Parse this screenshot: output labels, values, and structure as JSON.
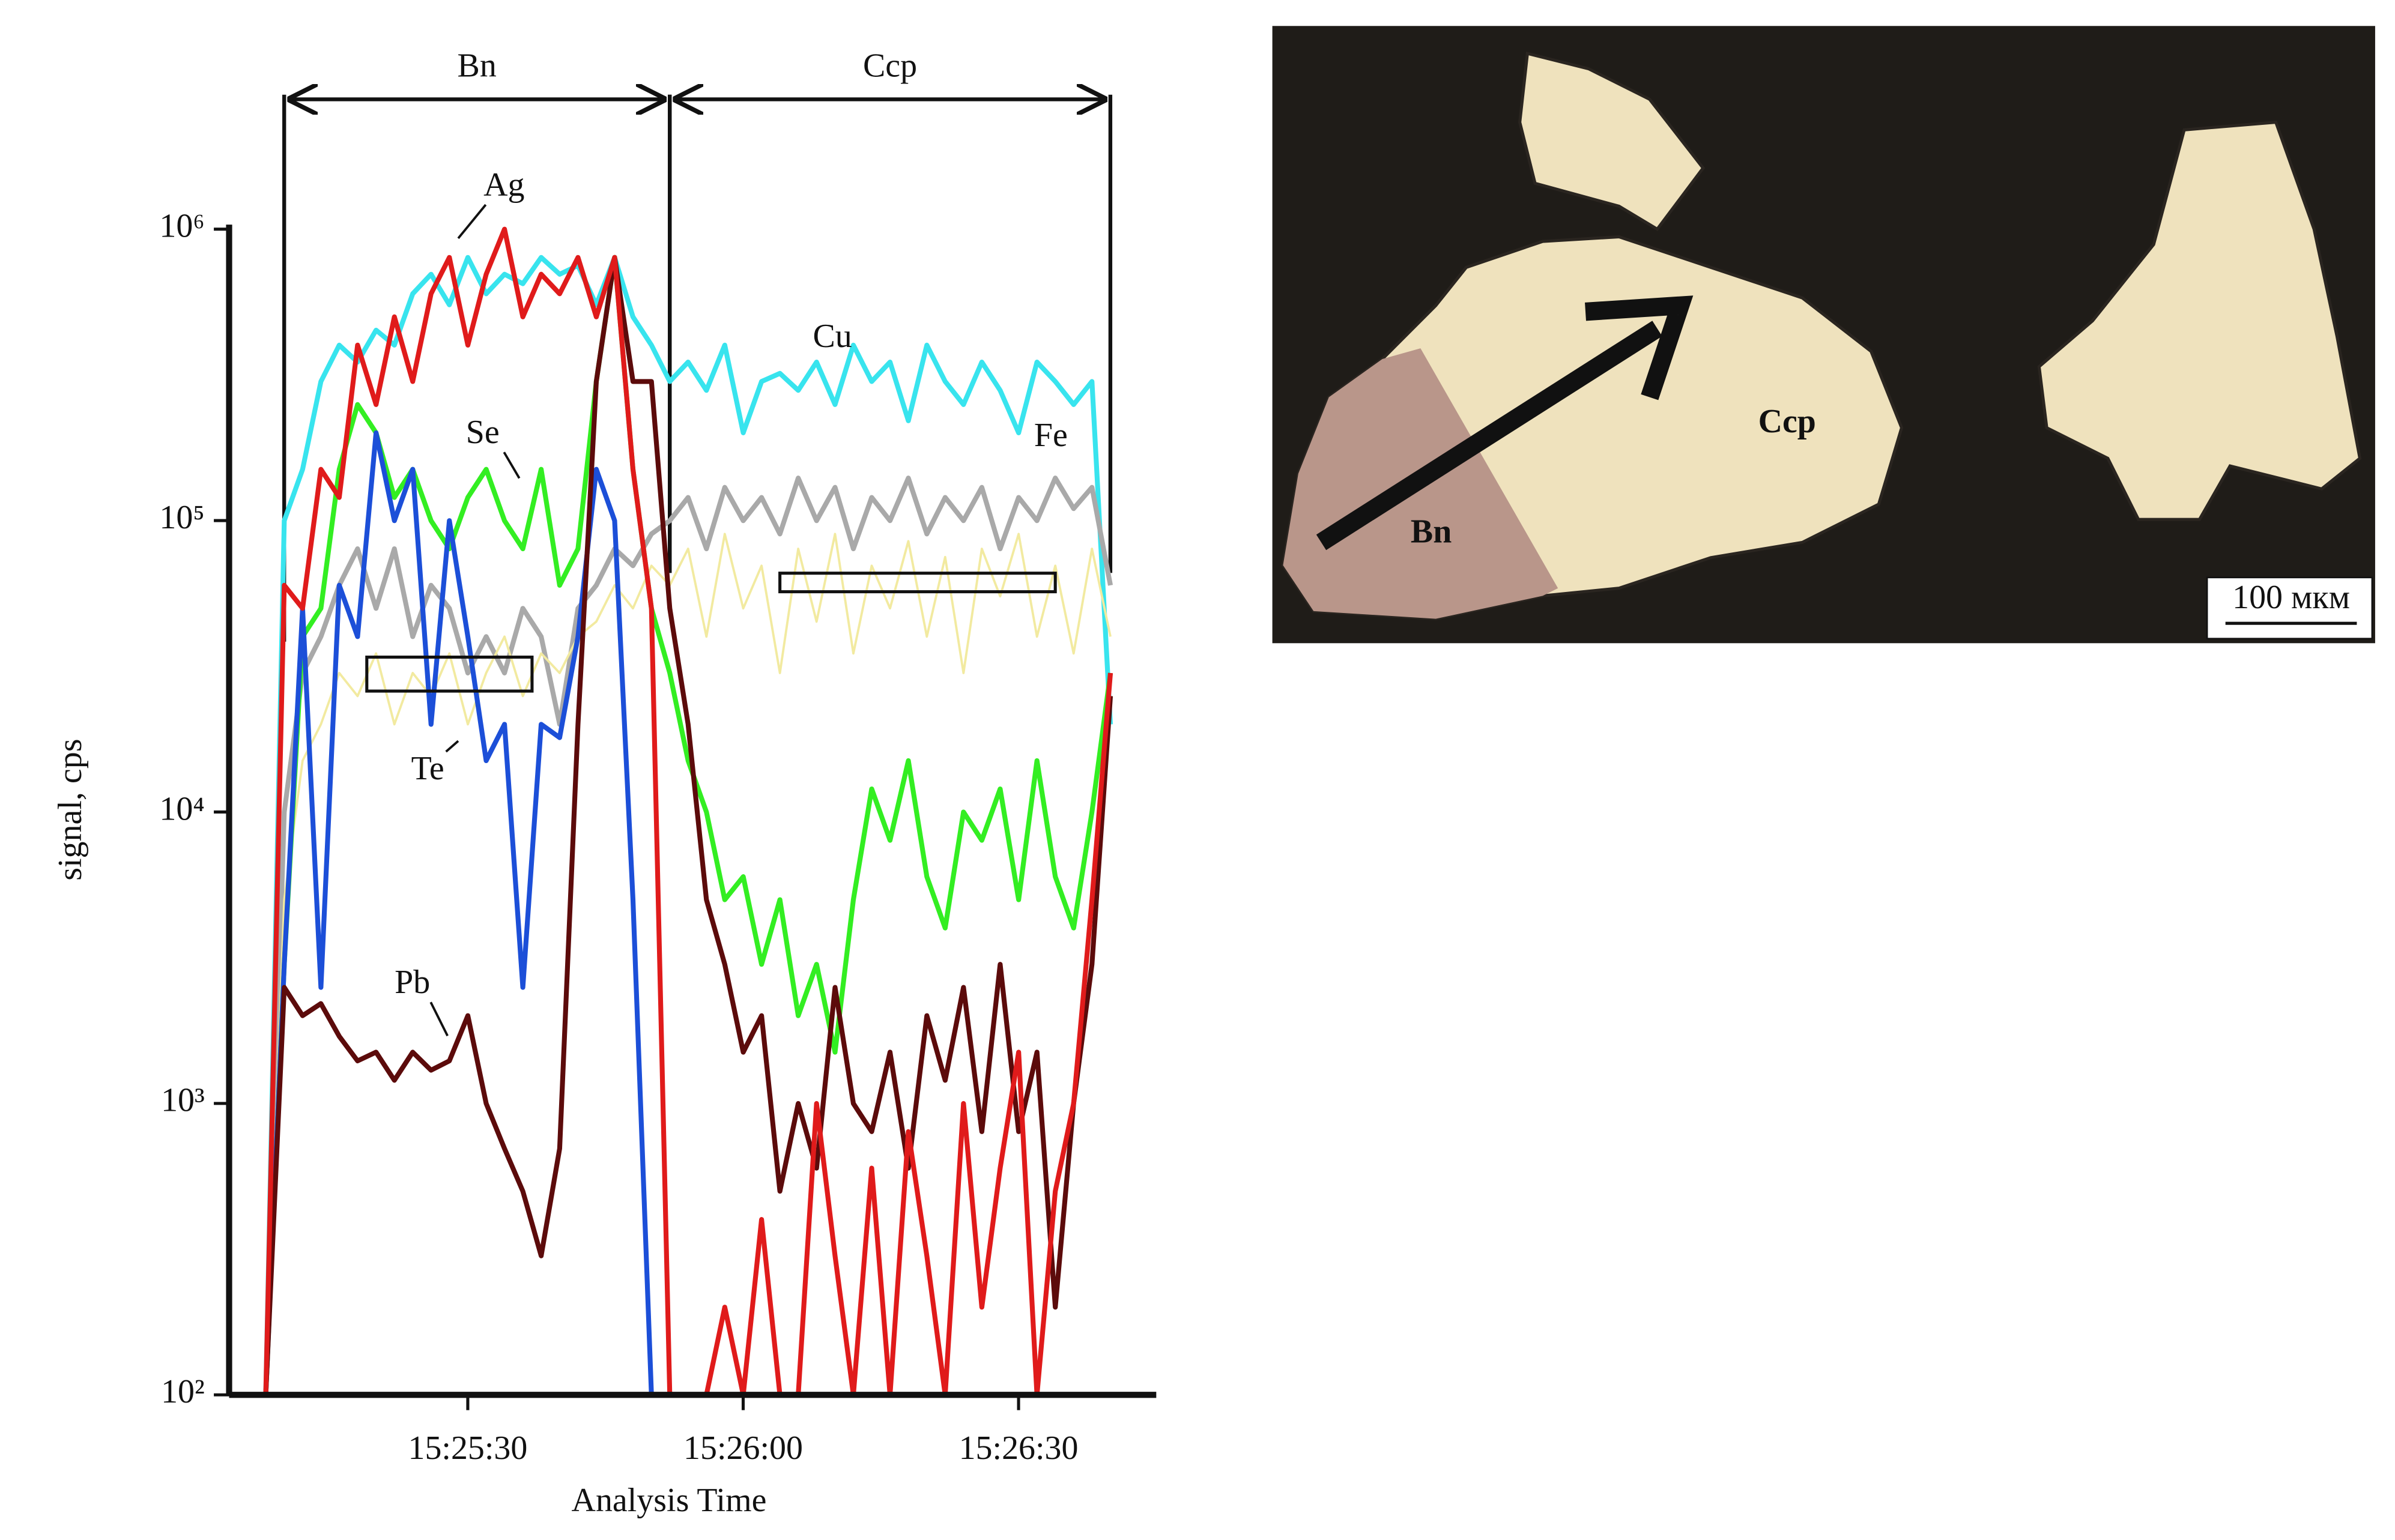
{
  "chart_data": {
    "type": "line",
    "x_label": "Analysis Time",
    "y_label": "signal, cps",
    "log_scale": true,
    "xlim": [
      "15:25:04",
      "15:26:45"
    ],
    "xticks": [
      "15:25:30",
      "15:26:00",
      "15:26:30"
    ],
    "ylim": [
      100,
      1000000
    ],
    "yticks": [
      {
        "value": 100,
        "label": "10²"
      },
      {
        "value": 1000,
        "label": "10³"
      },
      {
        "value": 10000,
        "label": "10⁴"
      },
      {
        "value": 100000,
        "label": "10⁵"
      },
      {
        "value": 1000000,
        "label": "10⁶"
      }
    ],
    "x": [
      "15:25:08",
      "15:25:10",
      "15:25:12",
      "15:25:14",
      "15:25:16",
      "15:25:18",
      "15:25:20",
      "15:25:22",
      "15:25:24",
      "15:25:26",
      "15:25:28",
      "15:25:30",
      "15:25:32",
      "15:25:34",
      "15:25:36",
      "15:25:38",
      "15:25:40",
      "15:25:42",
      "15:25:44",
      "15:25:46",
      "15:25:48",
      "15:25:50",
      "15:25:52",
      "15:25:54",
      "15:25:56",
      "15:25:58",
      "15:26:00",
      "15:26:02",
      "15:26:04",
      "15:26:06",
      "15:26:08",
      "15:26:10",
      "15:26:12",
      "15:26:14",
      "15:26:16",
      "15:26:18",
      "15:26:20",
      "15:26:22",
      "15:26:24",
      "15:26:26",
      "15:26:28",
      "15:26:30",
      "15:26:32",
      "15:26:34",
      "15:26:36",
      "15:26:38",
      "15:26:40"
    ],
    "series": [
      {
        "name": "Cu",
        "color": "#38e4ee",
        "values": [
          100,
          100000,
          150000,
          300000,
          400000,
          350000,
          450000,
          400000,
          600000,
          700000,
          550000,
          800000,
          600000,
          700000,
          650000,
          800000,
          700000,
          750000,
          550000,
          800000,
          500000,
          400000,
          300000,
          350000,
          280000,
          400000,
          200000,
          300000,
          320000,
          280000,
          350000,
          250000,
          400000,
          300000,
          350000,
          220000,
          400000,
          300000,
          250000,
          350000,
          280000,
          200000,
          350000,
          300000,
          250000,
          300000,
          20000
        ]
      },
      {
        "name": "Fe",
        "color": "#a9a9a9",
        "values": [
          100,
          10000,
          30000,
          40000,
          60000,
          80000,
          50000,
          80000,
          40000,
          60000,
          50000,
          30000,
          40000,
          30000,
          50000,
          40000,
          20000,
          50000,
          60000,
          80000,
          70000,
          90000,
          100000,
          120000,
          80000,
          130000,
          100000,
          120000,
          90000,
          140000,
          100000,
          130000,
          80000,
          120000,
          100000,
          140000,
          90000,
          120000,
          100000,
          130000,
          80000,
          120000,
          100000,
          140000,
          110000,
          130000,
          60000
        ]
      },
      {
        "color": "#f2eaa0",
        "values": [
          100,
          5000,
          15000,
          20000,
          30000,
          25000,
          35000,
          20000,
          30000,
          25000,
          35000,
          20000,
          30000,
          40000,
          25000,
          35000,
          30000,
          40000,
          45000,
          60000,
          50000,
          70000,
          60000,
          80000,
          40000,
          90000,
          50000,
          70000,
          30000,
          80000,
          45000,
          90000,
          35000,
          70000,
          50000,
          85000,
          40000,
          75000,
          30000,
          80000,
          55000,
          90000,
          40000,
          70000,
          35000,
          80000,
          40000
        ]
      },
      {
        "name": "Se",
        "color": "#33ee22",
        "values": [
          100,
          3000,
          40000,
          50000,
          150000,
          250000,
          200000,
          120000,
          150000,
          100000,
          80000,
          120000,
          150000,
          100000,
          80000,
          150000,
          60000,
          80000,
          300000,
          800000,
          150000,
          50000,
          30000,
          15000,
          10000,
          5000,
          6000,
          3000,
          5000,
          2000,
          3000,
          1500,
          5000,
          12000,
          8000,
          15000,
          6000,
          4000,
          10000,
          8000,
          12000,
          5000,
          15000,
          6000,
          4000,
          10000,
          30000
        ]
      },
      {
        "name": "Te",
        "color": "#1c4fd8",
        "values": [
          100,
          3000,
          50000,
          2500,
          60000,
          40000,
          200000,
          100000,
          150000,
          20000,
          100000,
          40000,
          15000,
          20000,
          2500,
          20000,
          18000,
          40000,
          150000,
          100000,
          5000,
          100,
          null,
          null,
          null,
          null,
          null,
          null,
          null,
          null,
          null,
          null,
          null,
          null,
          null,
          null,
          null,
          null,
          null,
          null,
          null,
          null,
          null,
          null,
          null,
          null,
          null
        ]
      },
      {
        "name": "Pb",
        "color": "#5c0b0b",
        "values": [
          100,
          2500,
          2000,
          2200,
          1700,
          1400,
          1500,
          1200,
          1500,
          1300,
          1400,
          2000,
          1000,
          700,
          500,
          300,
          700,
          20000,
          300000,
          800000,
          300000,
          300000,
          50000,
          20000,
          5000,
          3000,
          1500,
          2000,
          500,
          1000,
          600,
          2500,
          1000,
          800,
          1500,
          600,
          2000,
          1200,
          2500,
          800,
          3000,
          800,
          1500,
          200,
          1000,
          3000,
          25000
        ]
      },
      {
        "name": "Ag",
        "color": "#e01b1b",
        "values": [
          100,
          60000,
          50000,
          150000,
          120000,
          400000,
          250000,
          500000,
          300000,
          600000,
          800000,
          400000,
          700000,
          1000000,
          500000,
          700000,
          600000,
          800000,
          500000,
          800000,
          150000,
          50000,
          100,
          100,
          100,
          200,
          100,
          400,
          100,
          100,
          1000,
          300,
          100,
          600,
          100,
          800,
          300,
          100,
          1000,
          200,
          600,
          1500,
          100,
          500,
          1000,
          5000,
          30000
        ]
      }
    ],
    "zones": [
      {
        "label": "Bn",
        "x": [
          "15:25:10",
          "15:25:52"
        ]
      },
      {
        "label": "Ccp",
        "x": [
          "15:25:52",
          "15:26:40"
        ]
      }
    ],
    "integration_windows": [
      {
        "x": [
          "15:25:19",
          "15:25:37"
        ],
        "y": [
          26000,
          34000
        ]
      },
      {
        "x": [
          "15:26:04",
          "15:26:34"
        ],
        "y": [
          57000,
          66000
        ]
      }
    ]
  },
  "photo": {
    "labels": [
      "Bn",
      "Ccp"
    ],
    "scale_bar": "100 мкм"
  }
}
